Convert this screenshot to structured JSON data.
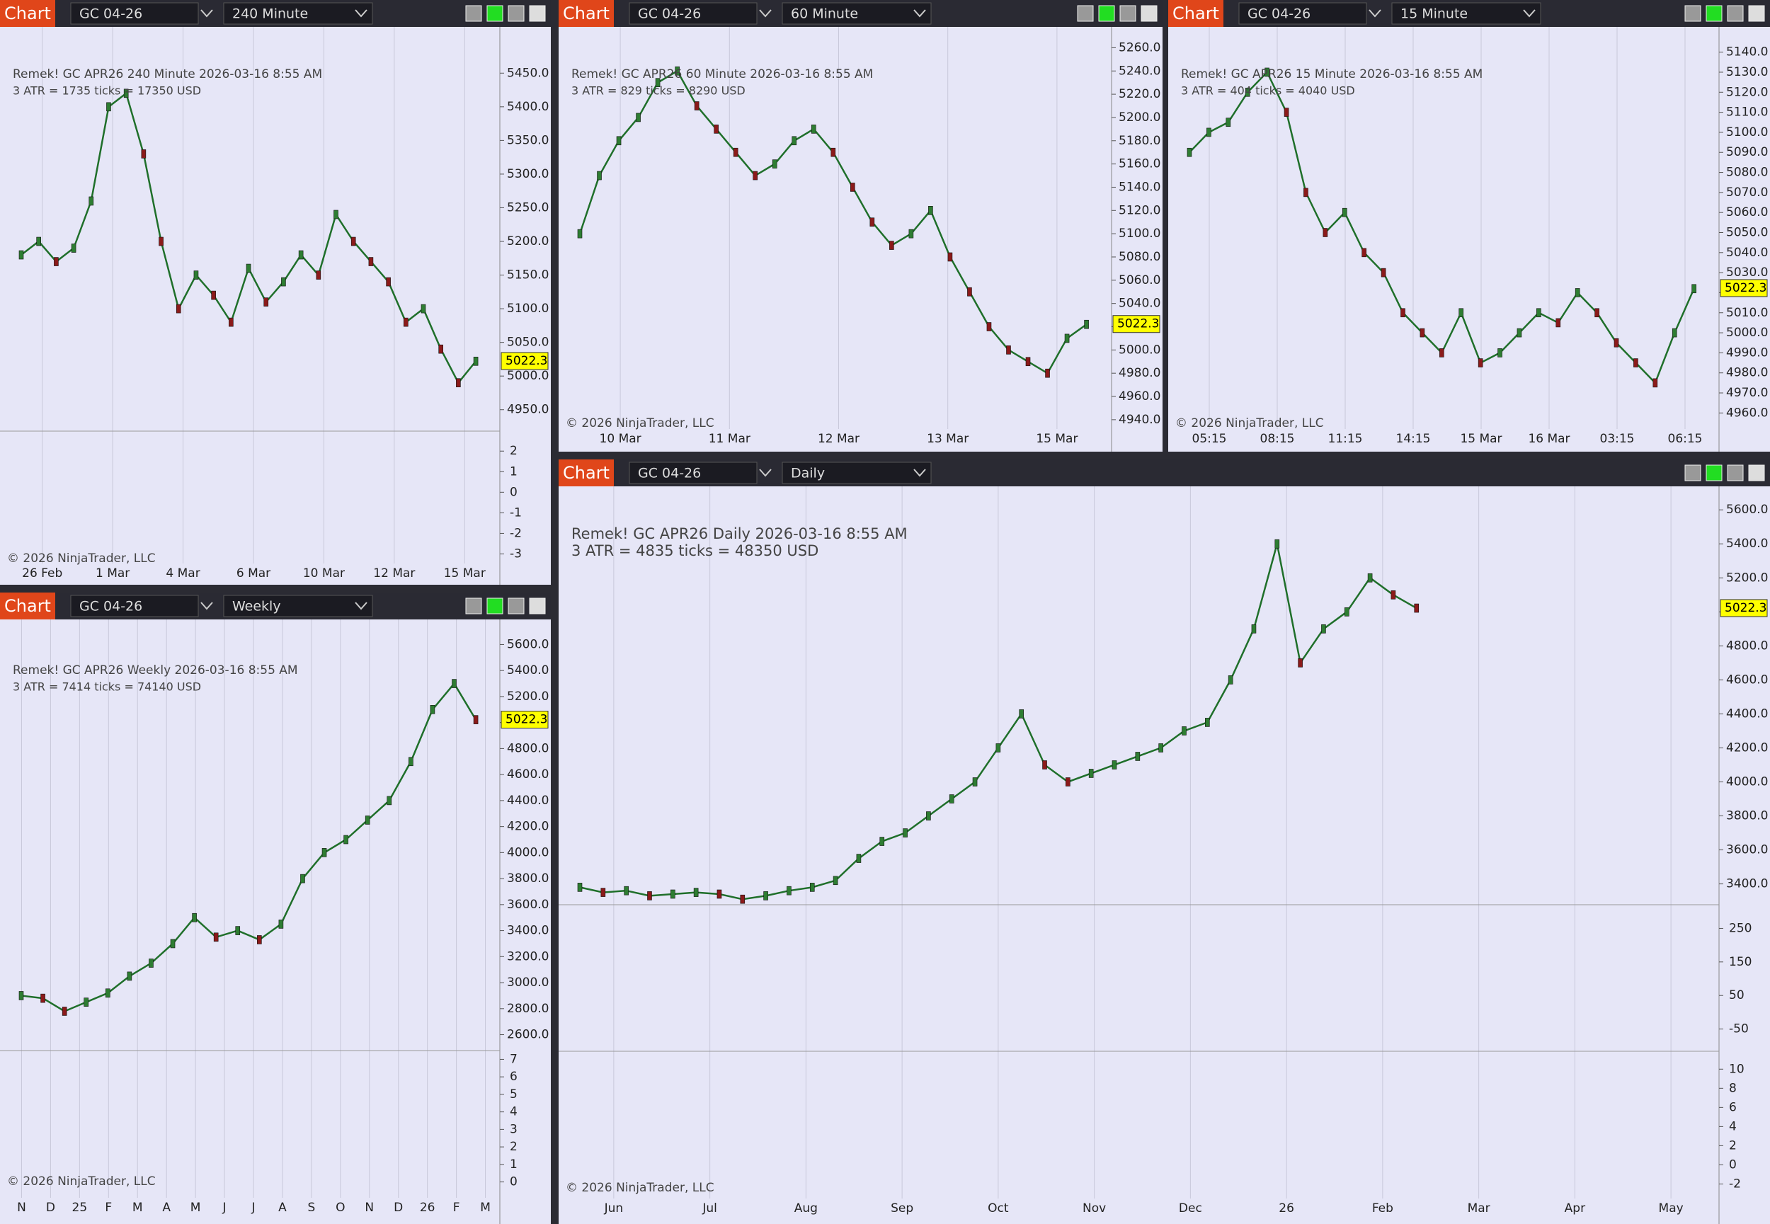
{
  "charts": [
    {
      "tab": "Chart",
      "instrument": "GC 04-26",
      "interval": "240 Minute",
      "info": "Remek!  GC APR26  240 Minute  2026-03-16 8:55 AM",
      "atr": "3 ATR = 1735 ticks = 17350 USD",
      "copyright": "© 2026 NinjaTrader, LLC",
      "last_price": 5022.3,
      "ylim": [
        4935,
        5505
      ],
      "price_ticks": [
        {
          "value": 4950,
          "label": "4950.0"
        },
        {
          "value": 5000,
          "label": "5000.0"
        },
        {
          "value": 5050,
          "label": "5050.0"
        },
        {
          "value": 5100,
          "label": "5100.0"
        },
        {
          "value": 5150,
          "label": "5150.0"
        },
        {
          "value": 5200,
          "label": "5200.0"
        },
        {
          "value": 5250,
          "label": "5250.0"
        },
        {
          "value": 5300,
          "label": "5300.0"
        },
        {
          "value": 5350,
          "label": "5350.0"
        },
        {
          "value": 5400,
          "label": "5400.0"
        },
        {
          "value": 5450,
          "label": "5450.0"
        }
      ],
      "x_labels": [
        "26 Feb",
        "1 Mar",
        "4 Mar",
        "6 Mar",
        "10 Mar",
        "12 Mar",
        "15 Mar"
      ],
      "close": [
        5180,
        5200,
        5170,
        5190,
        5260,
        5400,
        5420,
        5330,
        5200,
        5100,
        5150,
        5120,
        5080,
        5160,
        5110,
        5140,
        5180,
        5150,
        5240,
        5200,
        5170,
        5140,
        5080,
        5100,
        5040,
        4990,
        5022
      ],
      "indicators": [
        {
          "ylim": [
            -3.5,
            2.8
          ],
          "ticks": [
            2,
            1,
            0,
            -1,
            -2,
            -3
          ]
        }
      ]
    },
    {
      "tab": "Chart",
      "instrument": "GC 04-26",
      "interval": "60 Minute",
      "info": "Remek!  GC APR26  60 Minute  2026-03-16 8:55 AM",
      "atr": "3 ATR = 829 ticks = 8290 USD",
      "copyright": "© 2026 NinjaTrader, LLC",
      "last_price": 5022.3,
      "ylim": [
        4932,
        5270
      ],
      "price_ticks": [
        {
          "value": 4940,
          "label": "4940.0"
        },
        {
          "value": 4960,
          "label": "4960.0"
        },
        {
          "value": 4980,
          "label": "4980.0"
        },
        {
          "value": 5000,
          "label": "5000.0"
        },
        {
          "value": 5020,
          "label": "5020.0"
        },
        {
          "value": 5040,
          "label": "5040.0"
        },
        {
          "value": 5060,
          "label": "5060.0"
        },
        {
          "value": 5080,
          "label": "5080.0"
        },
        {
          "value": 5100,
          "label": "5100.0"
        },
        {
          "value": 5120,
          "label": "5120.0"
        },
        {
          "value": 5140,
          "label": "5140.0"
        },
        {
          "value": 5160,
          "label": "5160.0"
        },
        {
          "value": 5180,
          "label": "5180.0"
        },
        {
          "value": 5200,
          "label": "5200.0"
        },
        {
          "value": 5220,
          "label": "5220.0"
        },
        {
          "value": 5240,
          "label": "5240.0"
        },
        {
          "value": 5260,
          "label": "5260.0"
        }
      ],
      "x_labels": [
        "10 Mar",
        "11 Mar",
        "12 Mar",
        "13 Mar",
        "15 Mar"
      ],
      "close": [
        5100,
        5150,
        5180,
        5200,
        5230,
        5240,
        5210,
        5190,
        5170,
        5150,
        5160,
        5180,
        5190,
        5170,
        5140,
        5110,
        5090,
        5100,
        5120,
        5080,
        5050,
        5020,
        5000,
        4990,
        4980,
        5010,
        5022
      ],
      "indicators": []
    },
    {
      "tab": "Chart",
      "instrument": "GC 04-26",
      "interval": "15 Minute",
      "info": "Remek!  GC APR26  15 Minute  2026-03-16 8:55 AM",
      "atr": "3 ATR = 404 ticks = 4040 USD",
      "copyright": "© 2026 NinjaTrader, LLC",
      "last_price": 5022.3,
      "ylim": [
        4952,
        5148
      ],
      "price_ticks": [
        {
          "value": 4960,
          "label": "4960.0"
        },
        {
          "value": 4970,
          "label": "4970.0"
        },
        {
          "value": 4980,
          "label": "4980.0"
        },
        {
          "value": 4990,
          "label": "4990.0"
        },
        {
          "value": 5000,
          "label": "5000.0"
        },
        {
          "value": 5010,
          "label": "5010.0"
        },
        {
          "value": 5020,
          "label": "5020.0"
        },
        {
          "value": 5030,
          "label": "5030.0"
        },
        {
          "value": 5040,
          "label": "5040.0"
        },
        {
          "value": 5050,
          "label": "5050.0"
        },
        {
          "value": 5060,
          "label": "5060.0"
        },
        {
          "value": 5070,
          "label": "5070.0"
        },
        {
          "value": 5080,
          "label": "5080.0"
        },
        {
          "value": 5090,
          "label": "5090.0"
        },
        {
          "value": 5100,
          "label": "5100.0"
        },
        {
          "value": 5110,
          "label": "5110.0"
        },
        {
          "value": 5120,
          "label": "5120.0"
        },
        {
          "value": 5130,
          "label": "5130.0"
        },
        {
          "value": 5140,
          "label": "5140.0"
        }
      ],
      "x_labels": [
        "05:15",
        "08:15",
        "11:15",
        "14:15",
        "15 Mar",
        "16 Mar",
        "03:15",
        "06:15"
      ],
      "close": [
        5090,
        5100,
        5105,
        5120,
        5130,
        5110,
        5070,
        5050,
        5060,
        5040,
        5030,
        5010,
        5000,
        4990,
        5010,
        4985,
        4990,
        5000,
        5010,
        5005,
        5020,
        5010,
        4995,
        4985,
        4975,
        5000,
        5022
      ],
      "indicators": []
    },
    {
      "tab": "Chart",
      "instrument": "GC 04-26",
      "interval": "Weekly",
      "info": "Remek!  GC APR26  Weekly  2026-03-16 8:55 AM",
      "atr": "3 ATR = 7414 ticks = 74140 USD",
      "copyright": "© 2026 NinjaTrader, LLC",
      "last_price": 5022.3,
      "ylim": [
        2505,
        5695
      ],
      "price_ticks": [
        {
          "value": 2600,
          "label": "2600.0"
        },
        {
          "value": 2800,
          "label": "2800.0"
        },
        {
          "value": 3000,
          "label": "3000.0"
        },
        {
          "value": 3200,
          "label": "3200.0"
        },
        {
          "value": 3400,
          "label": "3400.0"
        },
        {
          "value": 3600,
          "label": "3600.0"
        },
        {
          "value": 3800,
          "label": "3800.0"
        },
        {
          "value": 4000,
          "label": "4000.0"
        },
        {
          "value": 4200,
          "label": "4200.0"
        },
        {
          "value": 4400,
          "label": "4400.0"
        },
        {
          "value": 4600,
          "label": "4600.0"
        },
        {
          "value": 4800,
          "label": "4800.0"
        },
        {
          "value": 5000,
          "label": "5000.0"
        },
        {
          "value": 5200,
          "label": "5200.0"
        },
        {
          "value": 5400,
          "label": "5400.0"
        },
        {
          "value": 5600,
          "label": "5600.0"
        }
      ],
      "x_labels": [
        "N",
        "D",
        "25",
        "F",
        "M",
        "A",
        "M",
        "J",
        "J",
        "A",
        "S",
        "O",
        "N",
        "D",
        "26",
        "F",
        "M"
      ],
      "close": [
        2900,
        2880,
        2780,
        2850,
        2920,
        3050,
        3150,
        3300,
        3500,
        3350,
        3400,
        3330,
        3450,
        3800,
        4000,
        4100,
        4250,
        4400,
        4700,
        5100,
        5300,
        5022
      ],
      "indicators": [
        {
          "ylim": [
            -0.3,
            7.3
          ],
          "ticks": [
            7,
            6,
            5,
            4,
            3,
            2,
            1,
            0
          ]
        }
      ]
    },
    {
      "tab": "Chart",
      "instrument": "GC 04-26",
      "interval": "Daily",
      "info": "Remek!  GC APR26  Daily  2026-03-16 8:55 AM",
      "atr": "3 ATR = 4835 ticks = 48350 USD",
      "copyright": "© 2026 NinjaTrader, LLC",
      "last_price": 5022.3,
      "ylim": [
        3290,
        5680
      ],
      "price_ticks": [
        {
          "value": 3400,
          "label": "3400.0"
        },
        {
          "value": 3600,
          "label": "3600.0"
        },
        {
          "value": 3800,
          "label": "3800.0"
        },
        {
          "value": 4000,
          "label": "4000.0"
        },
        {
          "value": 4200,
          "label": "4200.0"
        },
        {
          "value": 4400,
          "label": "4400.0"
        },
        {
          "value": 4600,
          "label": "4600.0"
        },
        {
          "value": 4800,
          "label": "4800.0"
        },
        {
          "value": 5000,
          "label": "5000.0"
        },
        {
          "value": 5200,
          "label": "5200.0"
        },
        {
          "value": 5400,
          "label": "5400.0"
        },
        {
          "value": 5600,
          "label": "5600.0"
        }
      ],
      "x_labels": [
        "Jun",
        "Jul",
        "Aug",
        "Sep",
        "Oct",
        "Nov",
        "Dec",
        "26",
        "Feb",
        "Mar",
        "Apr",
        "May"
      ],
      "close": [
        3380,
        3350,
        3360,
        3330,
        3340,
        3350,
        3340,
        3310,
        3330,
        3360,
        3380,
        3420,
        3550,
        3650,
        3700,
        3800,
        3900,
        4000,
        4200,
        4400,
        4100,
        4000,
        4050,
        4100,
        4150,
        4200,
        4300,
        4350,
        4600,
        4900,
        5400,
        4700,
        4900,
        5000,
        5200,
        5100,
        5022
      ],
      "indicators": [
        {
          "ylim": [
            -110,
            310
          ],
          "ticks": [
            250,
            150,
            50,
            -50
          ]
        },
        {
          "ylim": [
            -3,
            11.5
          ],
          "ticks": [
            10,
            8,
            6,
            4,
            2,
            0,
            -2
          ]
        }
      ]
    }
  ]
}
